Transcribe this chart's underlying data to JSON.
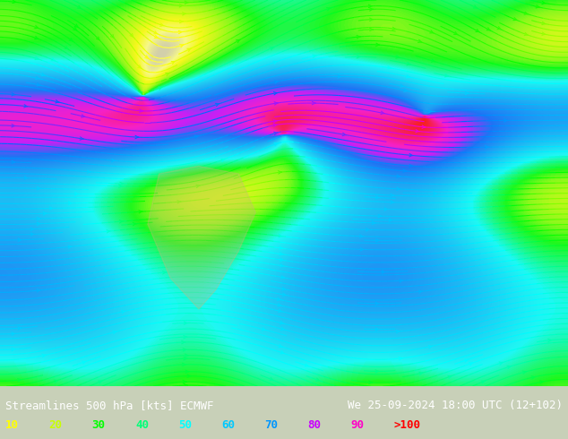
{
  "title_left": "Streamlines 500 hPa [kts] ECMWF",
  "title_right": "We 25-09-2024 18:00 UTC (12+102)",
  "legend_labels": [
    "10",
    "20",
    "30",
    "40",
    "50",
    "60",
    "70",
    "80",
    "90",
    ">100"
  ],
  "legend_colors": [
    "#ffff00",
    "#c8ff00",
    "#00ff00",
    "#00ff78",
    "#00ffff",
    "#00c8ff",
    "#0096ff",
    "#c800ff",
    "#ff00c8",
    "#ff0000"
  ],
  "bg_color": "#e8e8d0",
  "map_bg": "#d4cfa8",
  "text_color": "#000000",
  "font_size": 10,
  "figsize": [
    6.34,
    4.9
  ],
  "dpi": 100
}
